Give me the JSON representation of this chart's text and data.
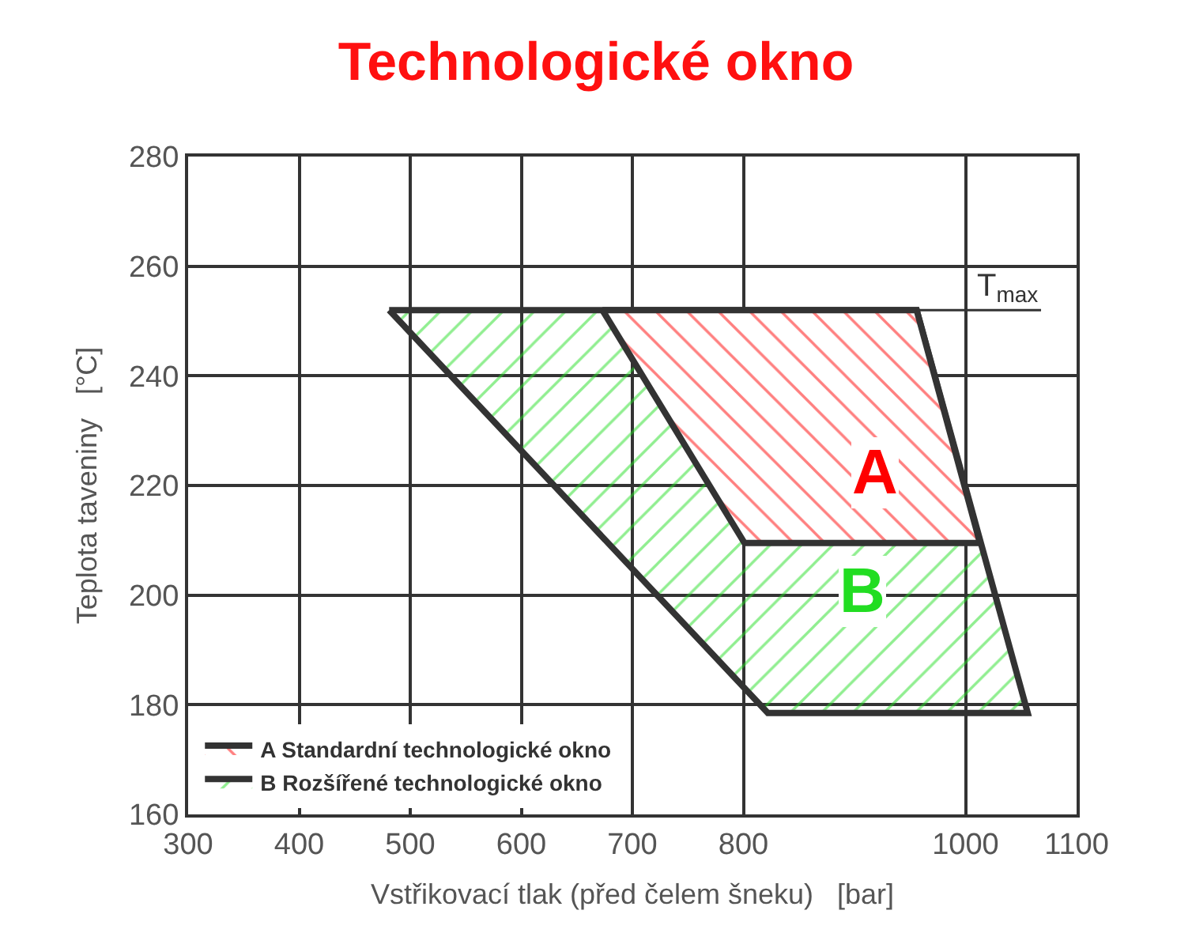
{
  "chart_data": {
    "type": "area",
    "title": "Technologické okno",
    "xlabel": "Vstřikovací tlak (před čelem šneku)   [bar]",
    "ylabel": "Teplota taveniny   [°C]",
    "series": [
      {
        "name": "B Rozšířené technologické okno",
        "color": "#22dd22",
        "x": [
          481,
          956,
          1056,
          822,
          481
        ],
        "values": [
          252,
          252,
          178.5,
          178.5,
          252
        ]
      },
      {
        "name": "A Standardní technologické okno",
        "color": "#ff0000",
        "x": [
          673,
          956,
          1013,
          801,
          673
        ],
        "values": [
          252,
          252,
          209.5,
          209.5,
          252
        ]
      }
    ],
    "annotations": [
      "B",
      "A"
    ],
    "ref_lines": [
      {
        "axis": "y",
        "value": 252,
        "label": "T$_{max}$"
      }
    ],
    "xlim": [
      300,
      1100
    ],
    "ylim": [
      160,
      280
    ],
    "xticks": [
      300,
      400,
      500,
      600,
      700,
      800,
      1000,
      1100
    ],
    "yticks": [
      160,
      180,
      200,
      220,
      240,
      260,
      280
    ],
    "grid": true,
    "legend": "bottom left"
  }
}
